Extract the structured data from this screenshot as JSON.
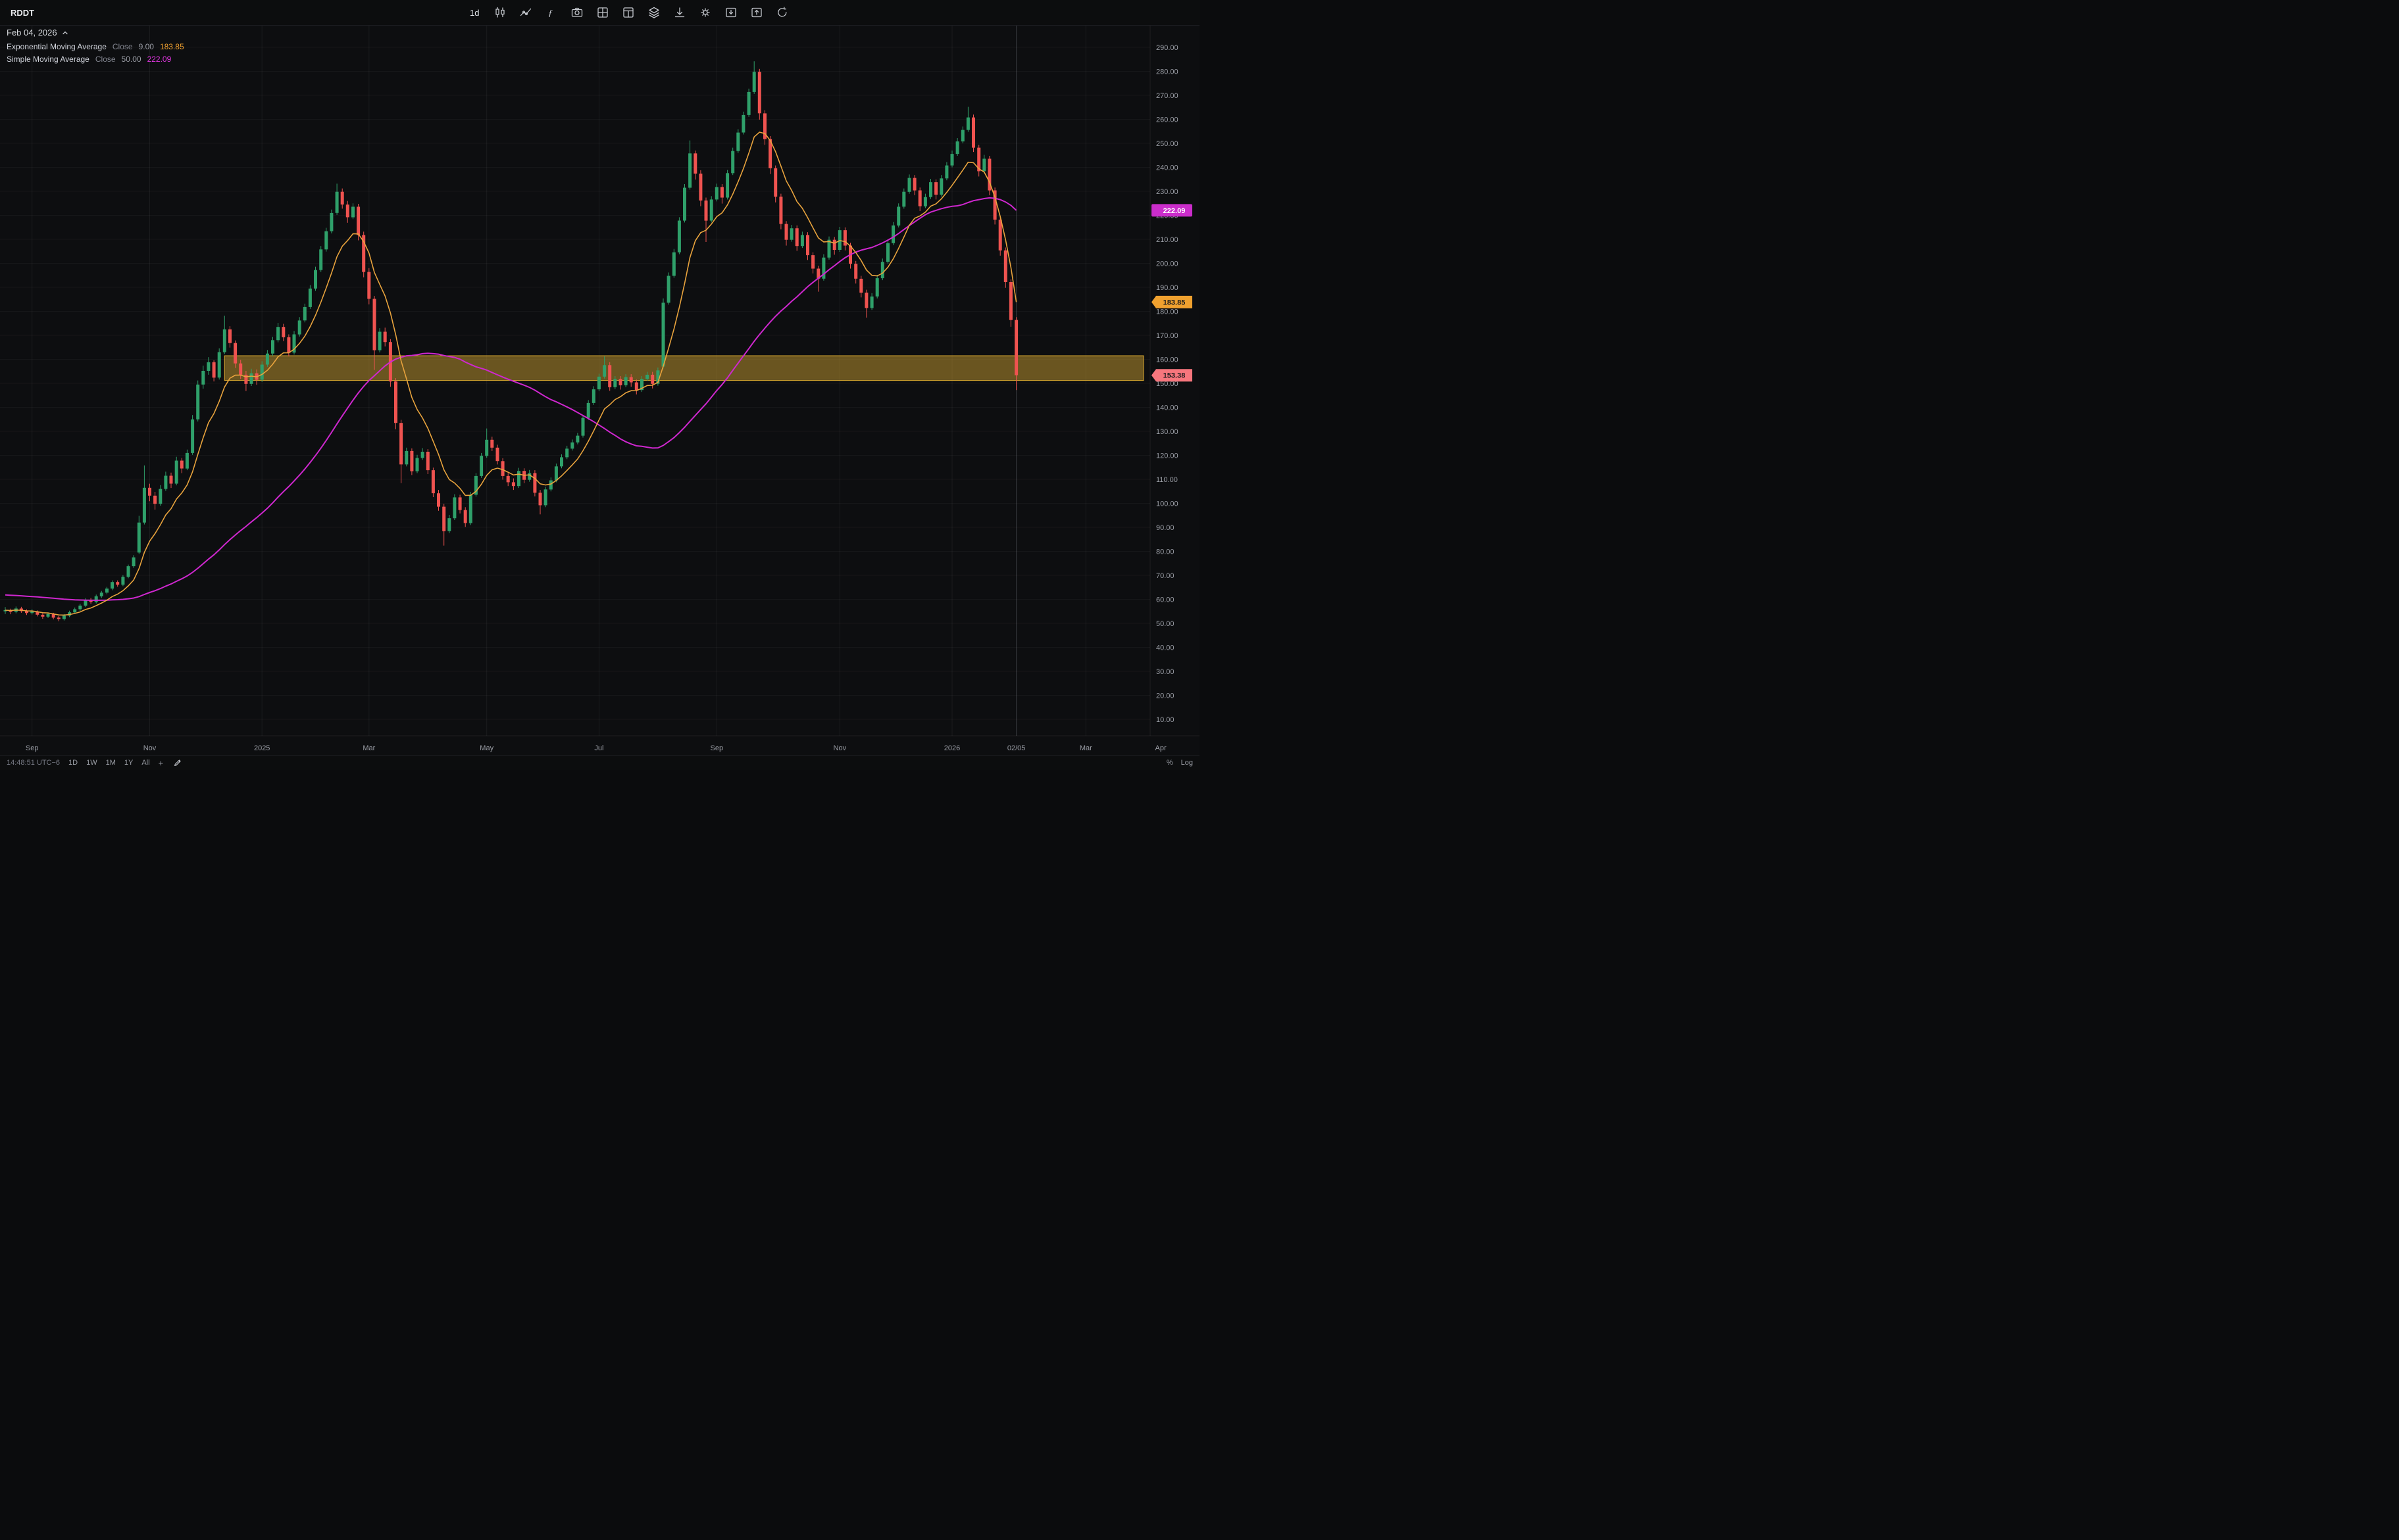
{
  "window": {
    "symbol": "RDDT"
  },
  "toolbar": {
    "timeframe_label": "1d",
    "icon_names": [
      "candlestick-style-icon",
      "compare-line-icon",
      "indicators-function-icon",
      "snapshot-camera-icon",
      "layout-grid-icon",
      "multichart-panels-icon",
      "object-tree-layers-icon",
      "download-icon",
      "settings-gear-icon",
      "import-layout-icon",
      "export-layout-icon",
      "refresh-icon"
    ]
  },
  "legend": {
    "date": "Feb 04, 2026",
    "indicators": [
      {
        "name": "Exponential Moving Average",
        "source_label": "Close",
        "param": "9.00",
        "value": "183.85",
        "color": "#f0a12f"
      },
      {
        "name": "Simple Moving Average",
        "source_label": "Close",
        "param": "50.00",
        "value": "222.09",
        "color": "#e236e2"
      }
    ]
  },
  "price_axis": {
    "labels": [
      "290.00",
      "280.00",
      "270.00",
      "260.00",
      "250.00",
      "240.00",
      "230.00",
      "220.00",
      "210.00",
      "200.00",
      "190.00",
      "180.00",
      "170.00",
      "160.00",
      "150.00",
      "140.00",
      "130.00",
      "120.00",
      "110.00",
      "100.00",
      "90.00",
      "80.00",
      "70.00",
      "60.00",
      "50.00",
      "40.00",
      "30.00",
      "20.00",
      "10.00"
    ],
    "badges": {
      "sma": {
        "text": "222.09",
        "bg": "#cb2dcb",
        "fg": "#ffffff"
      },
      "ema": {
        "text": "183.85",
        "bg": "#f0a12f",
        "fg": "#17181b"
      },
      "last": {
        "text": "153.38",
        "bg": "#f7767d",
        "fg": "#17181b"
      }
    }
  },
  "time_axis": {
    "ticks": [
      {
        "label": "Sep",
        "index": 5
      },
      {
        "label": "Nov",
        "index": 27
      },
      {
        "label": "2025",
        "index": 48
      },
      {
        "label": "Mar",
        "index": 68
      },
      {
        "label": "May",
        "index": 90
      },
      {
        "label": "Jul",
        "index": 111
      },
      {
        "label": "Sep",
        "index": 133
      },
      {
        "label": "Nov",
        "index": 156
      },
      {
        "label": "2026",
        "index": 177
      },
      {
        "label": "02/05",
        "index": 189
      },
      {
        "label": "Mar",
        "index": 202
      },
      {
        "label": "Apr",
        "index": 216
      }
    ]
  },
  "bottom_bar": {
    "clock": "14:48:51 UTC−6",
    "ranges": [
      "1D",
      "1W",
      "1M",
      "1Y",
      "All"
    ],
    "add_label": "+",
    "right_controls": [
      "%",
      "Log"
    ]
  },
  "chart_data": {
    "type": "candlestick",
    "symbol": "RDDT",
    "interval": "1d",
    "title": "RDDT daily candlestick chart with EMA(9) and SMA(50)",
    "ylim": [
      10,
      290
    ],
    "y_tick_step": 10,
    "colors": {
      "up": "#2fa06a",
      "down": "#ef5350",
      "ema": "#e8a33d",
      "sma": "#cf27cf"
    },
    "overlays": [
      {
        "type": "EMA",
        "period": 9,
        "source": "close",
        "value": 183.85,
        "color": "#e8a33d"
      },
      {
        "type": "SMA",
        "period": 50,
        "source": "close",
        "value": 222.09,
        "color": "#cf27cf"
      }
    ],
    "ema_value": 183.85,
    "sma_value": 222.09,
    "sma_seed": 62,
    "last_price": 153.38,
    "zone": {
      "from_index": 41,
      "price_top": 161.5,
      "price_bottom": 151.2,
      "fill": "rgba(199,155,47,0.5)",
      "border": "rgba(222,173,48,0.95)"
    },
    "candles": [
      [
        55.0,
        56.8,
        53.9,
        55.5
      ],
      [
        55.5,
        56.1,
        53.8,
        54.8
      ],
      [
        54.8,
        57.0,
        54.2,
        56.2
      ],
      [
        56.2,
        56.9,
        54.4,
        55.1
      ],
      [
        55.1,
        55.8,
        53.5,
        54.3
      ],
      [
        54.3,
        55.9,
        53.7,
        54.9
      ],
      [
        54.9,
        55.4,
        52.9,
        53.6
      ],
      [
        53.6,
        54.2,
        51.9,
        52.8
      ],
      [
        52.8,
        54.6,
        52.2,
        53.9
      ],
      [
        53.9,
        54.4,
        51.7,
        52.4
      ],
      [
        52.4,
        53.1,
        50.9,
        51.8
      ],
      [
        51.8,
        53.9,
        51.2,
        53.2
      ],
      [
        53.2,
        55.3,
        52.6,
        54.6
      ],
      [
        54.6,
        56.6,
        54.0,
        55.9
      ],
      [
        55.9,
        58.1,
        55.2,
        57.4
      ],
      [
        57.4,
        60.5,
        56.8,
        59.8
      ],
      [
        59.8,
        60.6,
        58.1,
        58.9
      ],
      [
        58.9,
        62.0,
        58.3,
        61.3
      ],
      [
        61.3,
        63.5,
        60.6,
        62.8
      ],
      [
        62.8,
        65.2,
        62.1,
        64.5
      ],
      [
        64.5,
        67.9,
        63.8,
        67.2
      ],
      [
        67.2,
        67.9,
        65.3,
        66.1
      ],
      [
        66.1,
        70.1,
        65.5,
        69.4
      ],
      [
        69.4,
        74.5,
        68.8,
        73.8
      ],
      [
        73.8,
        78.4,
        73.1,
        77.5
      ],
      [
        79.5,
        94.8,
        78.9,
        92.0
      ],
      [
        92.0,
        115.8,
        91.2,
        106.5
      ],
      [
        106.5,
        108.2,
        100.9,
        103.2
      ],
      [
        103.2,
        104.8,
        97.4,
        99.8
      ],
      [
        99.8,
        107.6,
        99.0,
        106.0
      ],
      [
        106.0,
        113.2,
        105.2,
        111.5
      ],
      [
        111.5,
        112.8,
        106.4,
        108.2
      ],
      [
        108.2,
        119.4,
        107.5,
        117.8
      ],
      [
        117.8,
        118.9,
        112.6,
        114.5
      ],
      [
        114.5,
        122.4,
        113.8,
        121.0
      ],
      [
        121.0,
        136.8,
        120.2,
        135.0
      ],
      [
        135.0,
        151.2,
        134.1,
        149.5
      ],
      [
        149.5,
        157.4,
        147.8,
        155.2
      ],
      [
        155.2,
        160.9,
        153.6,
        158.8
      ],
      [
        158.8,
        159.6,
        150.8,
        152.4
      ],
      [
        152.4,
        164.6,
        151.6,
        163.0
      ],
      [
        163.0,
        178.2,
        162.2,
        172.5
      ],
      [
        172.5,
        173.8,
        164.9,
        166.8
      ],
      [
        166.8,
        167.9,
        156.4,
        158.3
      ],
      [
        158.3,
        159.8,
        151.9,
        153.6
      ],
      [
        153.6,
        155.2,
        146.8,
        149.8
      ],
      [
        149.8,
        156.1,
        148.9,
        154.2
      ],
      [
        154.2,
        155.8,
        149.4,
        151.5
      ],
      [
        151.5,
        159.2,
        150.6,
        157.8
      ],
      [
        157.8,
        163.9,
        156.9,
        162.4
      ],
      [
        162.4,
        169.4,
        161.5,
        168.0
      ],
      [
        168.0,
        175.2,
        167.1,
        173.5
      ],
      [
        173.5,
        174.8,
        167.6,
        169.2
      ],
      [
        169.2,
        170.4,
        161.2,
        162.8
      ],
      [
        162.8,
        171.8,
        162.0,
        170.4
      ],
      [
        170.4,
        177.6,
        169.5,
        176.2
      ],
      [
        176.2,
        183.2,
        175.4,
        181.8
      ],
      [
        181.8,
        190.9,
        181.0,
        189.5
      ],
      [
        189.5,
        198.6,
        188.6,
        197.2
      ],
      [
        197.2,
        207.2,
        196.4,
        205.8
      ],
      [
        205.8,
        214.8,
        204.9,
        213.4
      ],
      [
        213.4,
        222.4,
        212.5,
        221.0
      ],
      [
        221.0,
        233.2,
        220.2,
        229.8
      ],
      [
        229.8,
        231.2,
        222.8,
        224.5
      ],
      [
        224.5,
        226.0,
        216.9,
        219.2
      ],
      [
        219.2,
        225.0,
        218.4,
        223.6
      ],
      [
        223.6,
        224.8,
        209.6,
        211.8
      ],
      [
        211.8,
        213.2,
        194.2,
        196.4
      ],
      [
        196.4,
        198.0,
        182.9,
        185.2
      ],
      [
        185.2,
        186.4,
        155.6,
        163.8
      ],
      [
        163.8,
        173.0,
        162.9,
        171.5
      ],
      [
        171.5,
        173.2,
        165.4,
        167.2
      ],
      [
        167.2,
        168.4,
        148.6,
        150.8
      ],
      [
        150.8,
        152.2,
        130.9,
        133.5
      ],
      [
        133.5,
        134.8,
        108.4,
        116.2
      ],
      [
        116.2,
        123.2,
        115.4,
        121.8
      ],
      [
        121.8,
        122.9,
        111.8,
        113.4
      ],
      [
        113.4,
        120.2,
        112.6,
        118.9
      ],
      [
        118.9,
        123.0,
        118.1,
        121.5
      ],
      [
        121.5,
        122.6,
        112.2,
        113.8
      ],
      [
        113.8,
        114.9,
        102.6,
        104.2
      ],
      [
        104.2,
        105.6,
        96.9,
        98.6
      ],
      [
        98.6,
        99.8,
        82.4,
        88.4
      ],
      [
        88.4,
        95.2,
        87.6,
        93.8
      ],
      [
        93.8,
        103.8,
        93.0,
        102.5
      ],
      [
        102.5,
        103.6,
        95.8,
        97.2
      ],
      [
        97.2,
        98.4,
        90.2,
        91.8
      ],
      [
        91.8,
        104.8,
        91.0,
        103.6
      ],
      [
        103.6,
        112.6,
        102.8,
        111.4
      ],
      [
        111.4,
        121.0,
        110.6,
        119.8
      ],
      [
        119.8,
        131.2,
        119.0,
        126.5
      ],
      [
        126.5,
        127.8,
        121.8,
        123.2
      ],
      [
        123.2,
        124.4,
        116.2,
        117.6
      ],
      [
        117.6,
        118.8,
        109.9,
        111.4
      ],
      [
        111.4,
        112.6,
        107.2,
        108.8
      ],
      [
        108.8,
        110.4,
        105.6,
        107.2
      ],
      [
        107.2,
        114.8,
        106.4,
        113.5
      ],
      [
        113.5,
        114.6,
        108.4,
        109.8
      ],
      [
        109.8,
        113.9,
        109.0,
        112.6
      ],
      [
        112.6,
        113.8,
        102.9,
        104.4
      ],
      [
        104.4,
        105.6,
        95.4,
        99.2
      ],
      [
        99.2,
        106.9,
        98.4,
        105.8
      ],
      [
        105.8,
        110.8,
        105.0,
        109.6
      ],
      [
        109.6,
        116.6,
        108.8,
        115.4
      ],
      [
        115.4,
        120.4,
        114.6,
        119.2
      ],
      [
        119.2,
        124.0,
        118.4,
        122.8
      ],
      [
        122.8,
        126.6,
        122.0,
        125.4
      ],
      [
        125.4,
        129.4,
        124.6,
        128.2
      ],
      [
        128.2,
        136.8,
        127.4,
        135.6
      ],
      [
        135.6,
        143.0,
        134.8,
        141.8
      ],
      [
        141.8,
        148.8,
        141.0,
        147.5
      ],
      [
        147.5,
        154.0,
        146.7,
        152.8
      ],
      [
        152.8,
        161.2,
        152.0,
        157.6
      ],
      [
        157.6,
        158.8,
        146.9,
        148.4
      ],
      [
        148.4,
        153.0,
        147.6,
        151.8
      ],
      [
        151.8,
        153.0,
        147.4,
        149.2
      ],
      [
        149.2,
        153.8,
        148.4,
        152.6
      ],
      [
        152.6,
        153.8,
        148.6,
        150.4
      ],
      [
        150.4,
        151.6,
        145.4,
        147.2
      ],
      [
        147.2,
        153.0,
        146.4,
        151.8
      ],
      [
        151.8,
        154.8,
        151.0,
        153.6
      ],
      [
        153.6,
        154.8,
        147.9,
        149.8
      ],
      [
        149.8,
        156.6,
        149.0,
        155.4
      ],
      [
        157.0,
        185.4,
        156.2,
        183.6
      ],
      [
        183.6,
        196.2,
        182.8,
        194.8
      ],
      [
        194.8,
        206.0,
        194.0,
        204.6
      ],
      [
        204.6,
        219.2,
        203.8,
        217.8
      ],
      [
        217.8,
        233.0,
        217.0,
        231.5
      ],
      [
        231.5,
        251.2,
        230.7,
        245.8
      ],
      [
        245.8,
        247.0,
        234.9,
        237.4
      ],
      [
        237.4,
        238.8,
        223.8,
        226.2
      ],
      [
        226.2,
        227.4,
        208.9,
        217.8
      ],
      [
        217.8,
        228.0,
        217.0,
        226.6
      ],
      [
        226.6,
        233.2,
        225.8,
        231.8
      ],
      [
        231.8,
        233.0,
        224.9,
        227.4
      ],
      [
        227.4,
        238.9,
        226.6,
        237.6
      ],
      [
        237.6,
        248.2,
        236.8,
        246.8
      ],
      [
        246.8,
        255.9,
        246.0,
        254.5
      ],
      [
        254.5,
        263.2,
        253.7,
        261.8
      ],
      [
        261.8,
        272.8,
        261.0,
        271.4
      ],
      [
        271.4,
        284.2,
        270.6,
        279.8
      ],
      [
        279.8,
        281.0,
        259.9,
        262.5
      ],
      [
        262.5,
        263.8,
        249.4,
        251.8
      ],
      [
        251.8,
        253.0,
        237.2,
        239.6
      ],
      [
        239.6,
        240.8,
        225.4,
        227.8
      ],
      [
        227.8,
        229.0,
        214.2,
        216.4
      ],
      [
        216.4,
        217.6,
        207.4,
        209.8
      ],
      [
        209.8,
        216.0,
        209.0,
        214.6
      ],
      [
        214.6,
        215.8,
        205.2,
        207.2
      ],
      [
        207.2,
        213.2,
        206.4,
        211.8
      ],
      [
        211.8,
        213.0,
        201.4,
        203.4
      ],
      [
        203.4,
        204.6,
        195.8,
        197.8
      ],
      [
        197.8,
        199.0,
        188.2,
        193.6
      ],
      [
        193.6,
        203.8,
        192.8,
        202.4
      ],
      [
        202.4,
        211.2,
        201.6,
        209.8
      ],
      [
        209.8,
        211.0,
        203.6,
        205.6
      ],
      [
        205.6,
        215.2,
        204.8,
        213.8
      ],
      [
        213.8,
        215.0,
        205.4,
        207.4
      ],
      [
        207.4,
        208.6,
        197.8,
        199.8
      ],
      [
        199.8,
        201.0,
        191.6,
        193.6
      ],
      [
        193.6,
        194.8,
        185.8,
        187.8
      ],
      [
        187.8,
        189.0,
        177.4,
        181.4
      ],
      [
        181.4,
        187.6,
        180.6,
        186.2
      ],
      [
        186.2,
        195.2,
        185.4,
        193.8
      ],
      [
        193.8,
        202.0,
        193.0,
        200.6
      ],
      [
        200.6,
        209.8,
        199.8,
        208.4
      ],
      [
        208.4,
        217.2,
        207.6,
        215.8
      ],
      [
        215.8,
        225.0,
        215.0,
        223.6
      ],
      [
        223.6,
        231.2,
        222.8,
        229.8
      ],
      [
        229.8,
        237.0,
        229.0,
        235.6
      ],
      [
        235.6,
        236.8,
        228.4,
        230.4
      ],
      [
        230.4,
        231.6,
        221.8,
        223.8
      ],
      [
        223.8,
        229.0,
        223.0,
        227.6
      ],
      [
        227.6,
        235.2,
        226.8,
        233.8
      ],
      [
        233.8,
        235.0,
        226.6,
        228.6
      ],
      [
        228.6,
        236.8,
        227.8,
        235.4
      ],
      [
        235.4,
        242.2,
        234.6,
        240.8
      ],
      [
        240.8,
        247.0,
        240.0,
        245.6
      ],
      [
        245.6,
        252.2,
        244.8,
        250.8
      ],
      [
        250.8,
        257.0,
        250.0,
        255.6
      ],
      [
        255.6,
        265.2,
        254.8,
        260.8
      ],
      [
        260.8,
        262.0,
        246.4,
        248.2
      ],
      [
        248.2,
        249.4,
        236.2,
        238.4
      ],
      [
        238.4,
        245.2,
        237.6,
        243.6
      ],
      [
        243.6,
        244.8,
        228.4,
        230.4
      ],
      [
        230.4,
        231.6,
        216.2,
        218.2
      ],
      [
        218.2,
        219.4,
        203.2,
        205.4
      ],
      [
        205.4,
        206.6,
        189.8,
        192.2
      ],
      [
        192.2,
        193.4,
        173.6,
        176.4
      ],
      [
        176.4,
        177.6,
        147.2,
        153.38
      ]
    ]
  }
}
